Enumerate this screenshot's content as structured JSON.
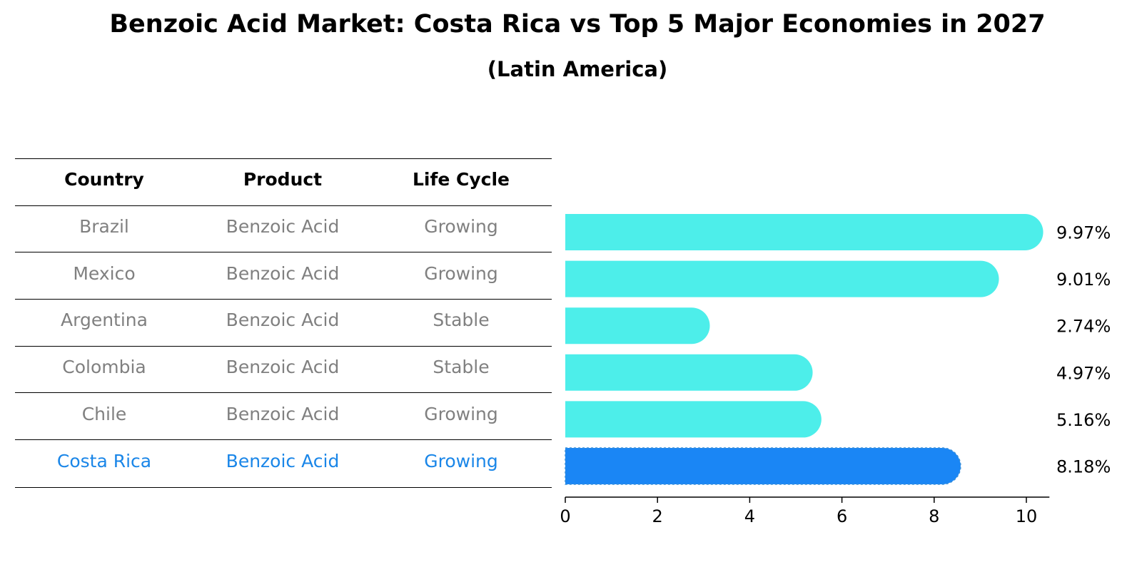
{
  "title": "Benzoic Acid Market: Costa Rica vs Top 5 Major Economies in 2027",
  "subtitle": "(Latin America)",
  "table": {
    "headers": [
      "Country",
      "Product",
      "Life Cycle"
    ],
    "rows": [
      {
        "country": "Brazil",
        "product": "Benzoic Acid",
        "life_cycle": "Growing",
        "highlight": false
      },
      {
        "country": "Mexico",
        "product": "Benzoic Acid",
        "life_cycle": "Growing",
        "highlight": false
      },
      {
        "country": "Argentina",
        "product": "Benzoic Acid",
        "life_cycle": "Stable",
        "highlight": false
      },
      {
        "country": "Colombia",
        "product": "Benzoic Acid",
        "life_cycle": "Stable",
        "highlight": false
      },
      {
        "country": "Chile",
        "product": "Benzoic Acid",
        "life_cycle": "Growing",
        "highlight": false
      },
      {
        "country": "Costa Rica",
        "product": "Benzoic Acid",
        "life_cycle": "Growing",
        "highlight": true
      }
    ]
  },
  "chart_data": {
    "type": "bar",
    "orientation": "horizontal",
    "title": "Benzoic Acid Market: Costa Rica vs Top 5 Major Economies in 2027",
    "subtitle": "(Latin America)",
    "categories": [
      "Brazil",
      "Mexico",
      "Argentina",
      "Colombia",
      "Chile",
      "Costa Rica"
    ],
    "values": [
      9.97,
      9.01,
      2.74,
      4.97,
      5.16,
      8.18
    ],
    "value_labels": [
      "9.97%",
      "9.01%",
      "2.74%",
      "4.97%",
      "5.16%",
      "8.18%"
    ],
    "highlight_index": 5,
    "xlabel": "",
    "ylabel": "",
    "xlim": [
      0,
      10.5
    ],
    "xticks": [
      0,
      2,
      4,
      6,
      8,
      10
    ],
    "xtick_labels": [
      "0",
      "2",
      "4",
      "6",
      "8",
      "10"
    ],
    "grid": false,
    "colors": {
      "bar": "#4deeea",
      "highlight_bar": "#1a86f5",
      "highlight_text": "#1a86e8",
      "muted_text": "#808080",
      "axis": "#000000"
    }
  }
}
